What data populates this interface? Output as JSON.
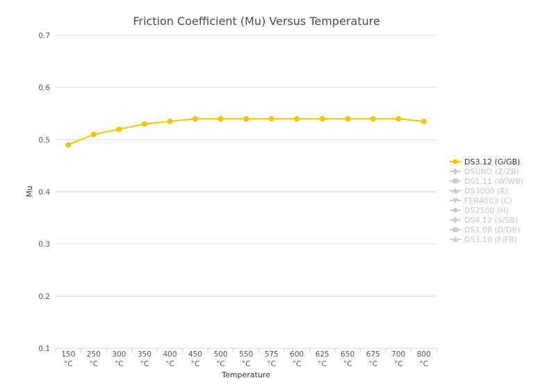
{
  "chart_data": {
    "type": "line",
    "title": "Friction Coefficient (Mu) Versus Temperature",
    "xlabel": "Temperature",
    "ylabel": "Mu",
    "x_unit": "°C",
    "categories": [
      "150",
      "250",
      "300",
      "350",
      "400",
      "450",
      "500",
      "550",
      "575",
      "600",
      "625",
      "650",
      "675",
      "700",
      "800"
    ],
    "ylim": [
      0.1,
      0.7
    ],
    "yticks": [
      "0.1",
      "0.2",
      "0.3",
      "0.4",
      "0.5",
      "0.6",
      "0.7"
    ],
    "grid": true,
    "legend_position": "right",
    "series": [
      {
        "name": "DS3.12 (G/GB)",
        "color": "#f5c400",
        "marker": "circle",
        "visible": true,
        "values": [
          0.49,
          0.51,
          0.52,
          0.53,
          0.535,
          0.54,
          0.54,
          0.54,
          0.54,
          0.54,
          0.54,
          0.54,
          0.54,
          0.54,
          0.535
        ]
      },
      {
        "name": "DSUNO (Z/ZB)",
        "color": "#cccccc",
        "marker": "diamond",
        "visible": false
      },
      {
        "name": "DS1.11 (W/WB)",
        "color": "#cccccc",
        "marker": "square",
        "visible": false
      },
      {
        "name": "DS3000 (R)",
        "color": "#cccccc",
        "marker": "triangle",
        "visible": false
      },
      {
        "name": "FER4003 (C)",
        "color": "#cccccc",
        "marker": "triangle-down",
        "visible": false
      },
      {
        "name": "DS2500 (H)",
        "color": "#cccccc",
        "marker": "circle",
        "visible": false
      },
      {
        "name": "DS4.12 (S/SB)",
        "color": "#cccccc",
        "marker": "diamond",
        "visible": false
      },
      {
        "name": "DS1.08 (D/DB)",
        "color": "#cccccc",
        "marker": "square",
        "visible": false
      },
      {
        "name": "DS3.10 (F/FB)",
        "color": "#cccccc",
        "marker": "triangle",
        "visible": false
      }
    ]
  }
}
